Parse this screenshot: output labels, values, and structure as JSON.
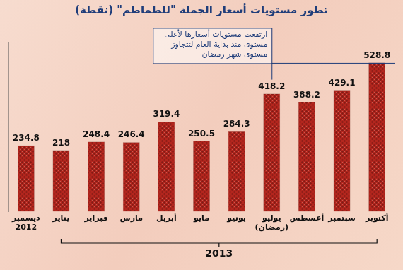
{
  "chart_data": {
    "type": "bar",
    "title": "تطور مستويات أسعار الجملة \"للطماطم\" (نقطة)",
    "categories": [
      "ديسمبر 2012",
      "يناير",
      "فبراير",
      "مارس",
      "أبريل",
      "مايو",
      "يونيو",
      "يوليو (رمضان)",
      "أغسطس",
      "سبتمبر",
      "أكتوبر"
    ],
    "values": [
      234.8,
      218,
      248.4,
      246.4,
      319.4,
      250.5,
      284.3,
      418.2,
      388.2,
      429.1,
      528.8
    ],
    "color": "#b3261e",
    "ylim": [
      0,
      600
    ],
    "grid": false,
    "data_labels": true,
    "tick_labels": "x",
    "annotations": [
      {
        "text": "ارتفعت مستويات أسعارها لأعلى مستوى منذ بداية العام لتتجاوز مستوى شهر رمضان",
        "category": "يوليو (رمضان)"
      },
      {
        "text": "2013",
        "from": "يناير",
        "to": "أكتوبر"
      }
    ]
  }
}
